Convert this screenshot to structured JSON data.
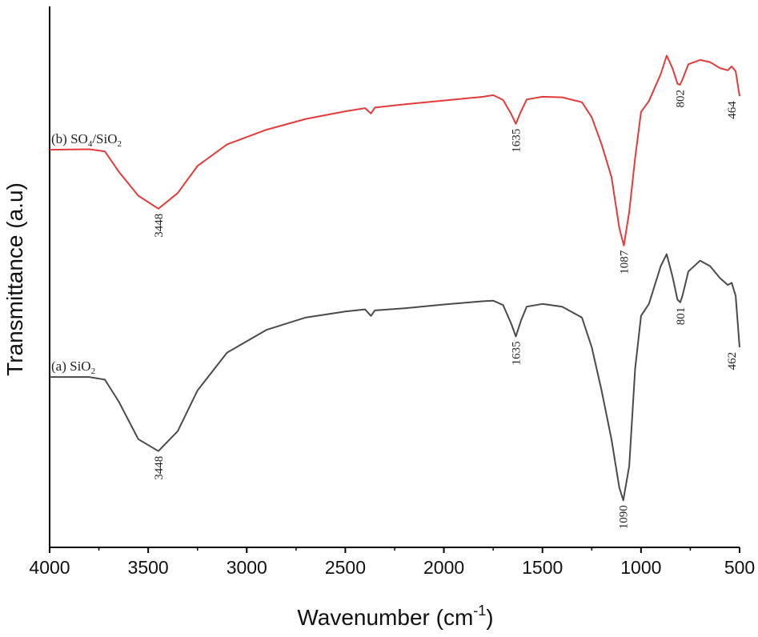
{
  "chart_data": {
    "type": "line",
    "xlabel": "Wavenumber (cm",
    "xlabel_sup": "-1",
    "xlabel_close": ")",
    "ylabel": "Transmittance (a.u)",
    "xlim": [
      4000,
      500
    ],
    "ylim": [
      0,
      100
    ],
    "x_reversed": true,
    "y_ticks_shown": false,
    "grid": false,
    "xticks": [
      4000,
      3500,
      3000,
      2500,
      2000,
      1500,
      1000,
      500
    ],
    "colors": {
      "a": "#4a4a4a",
      "b": "#e33b3b"
    },
    "series": [
      {
        "id": "b",
        "label_prefix": "(b) SO",
        "label_sub1": "4",
        "label_mid": "/SiO",
        "label_sub2": "2",
        "color": "#e33b3b",
        "points": [
          [
            4000,
            73.5
          ],
          [
            3800,
            73.6
          ],
          [
            3720,
            73.2
          ],
          [
            3650,
            69.5
          ],
          [
            3550,
            65
          ],
          [
            3448,
            62.6
          ],
          [
            3350,
            65.5
          ],
          [
            3250,
            70.5
          ],
          [
            3100,
            74.5
          ],
          [
            2900,
            77.2
          ],
          [
            2700,
            79.2
          ],
          [
            2500,
            80.6
          ],
          [
            2400,
            81.2
          ],
          [
            2370,
            80.2
          ],
          [
            2350,
            81.3
          ],
          [
            2200,
            81.9
          ],
          [
            2000,
            82.6
          ],
          [
            1800,
            83.3
          ],
          [
            1750,
            83.6
          ],
          [
            1700,
            82.7
          ],
          [
            1660,
            80.2
          ],
          [
            1635,
            78.3
          ],
          [
            1610,
            80.5
          ],
          [
            1580,
            82.8
          ],
          [
            1500,
            83.3
          ],
          [
            1400,
            83.2
          ],
          [
            1300,
            82.3
          ],
          [
            1250,
            79.5
          ],
          [
            1200,
            74.5
          ],
          [
            1150,
            68.5
          ],
          [
            1110,
            59
          ],
          [
            1087,
            55.8
          ],
          [
            1060,
            62
          ],
          [
            1030,
            72
          ],
          [
            1000,
            80.5
          ],
          [
            960,
            82.5
          ],
          [
            900,
            87.5
          ],
          [
            870,
            90.9
          ],
          [
            840,
            88.5
          ],
          [
            815,
            85.7
          ],
          [
            802,
            85.5
          ],
          [
            790,
            86.5
          ],
          [
            760,
            89.3
          ],
          [
            700,
            90.1
          ],
          [
            650,
            89.7
          ],
          [
            600,
            88.6
          ],
          [
            560,
            88.2
          ],
          [
            540,
            88.9
          ],
          [
            520,
            88
          ],
          [
            500,
            83.4
          ]
        ]
      },
      {
        "id": "a",
        "label_prefix": "(a) SiO",
        "label_sub1": "2",
        "label_mid": "",
        "label_sub2": "",
        "color": "#4a4a4a",
        "points": [
          [
            4000,
            31.5
          ],
          [
            3800,
            31.5
          ],
          [
            3720,
            31
          ],
          [
            3650,
            27
          ],
          [
            3550,
            20
          ],
          [
            3448,
            17.8
          ],
          [
            3350,
            21.5
          ],
          [
            3250,
            29
          ],
          [
            3100,
            36
          ],
          [
            2900,
            40.2
          ],
          [
            2700,
            42.5
          ],
          [
            2500,
            43.6
          ],
          [
            2400,
            44
          ],
          [
            2370,
            42.8
          ],
          [
            2350,
            43.8
          ],
          [
            2200,
            44.2
          ],
          [
            2000,
            44.9
          ],
          [
            1800,
            45.5
          ],
          [
            1750,
            45.6
          ],
          [
            1700,
            44.8
          ],
          [
            1660,
            41.5
          ],
          [
            1635,
            39
          ],
          [
            1610,
            41.8
          ],
          [
            1580,
            44.5
          ],
          [
            1500,
            45
          ],
          [
            1400,
            44.5
          ],
          [
            1300,
            42.5
          ],
          [
            1250,
            37
          ],
          [
            1200,
            29
          ],
          [
            1150,
            20
          ],
          [
            1110,
            11
          ],
          [
            1090,
            8.7
          ],
          [
            1060,
            15
          ],
          [
            1030,
            33
          ],
          [
            1000,
            42.8
          ],
          [
            960,
            45
          ],
          [
            900,
            52
          ],
          [
            870,
            54.2
          ],
          [
            840,
            50
          ],
          [
            815,
            45.8
          ],
          [
            801,
            45.3
          ],
          [
            790,
            46.5
          ],
          [
            760,
            51
          ],
          [
            700,
            53
          ],
          [
            650,
            52
          ],
          [
            600,
            49.8
          ],
          [
            560,
            48.5
          ],
          [
            540,
            48.9
          ],
          [
            520,
            46.5
          ],
          [
            500,
            37
          ]
        ]
      }
    ],
    "annotations": [
      {
        "series": "b",
        "text": "3448",
        "x": 3448,
        "y": 62.6
      },
      {
        "series": "b",
        "text": "1635",
        "x": 1635,
        "y": 78.3
      },
      {
        "series": "b",
        "text": "1087",
        "x": 1087,
        "y": 55.8
      },
      {
        "series": "b",
        "text": "802",
        "x": 802,
        "y": 85.5
      },
      {
        "series": "b",
        "text": "464",
        "x": 500,
        "y": 83.4
      },
      {
        "series": "a",
        "text": "3448",
        "x": 3448,
        "y": 17.8
      },
      {
        "series": "a",
        "text": "1635",
        "x": 1635,
        "y": 39
      },
      {
        "series": "a",
        "text": "1090",
        "x": 1090,
        "y": 8.7
      },
      {
        "series": "a",
        "text": "801",
        "x": 801,
        "y": 45.3
      },
      {
        "series": "a",
        "text": "462",
        "x": 500,
        "y": 37
      }
    ]
  }
}
